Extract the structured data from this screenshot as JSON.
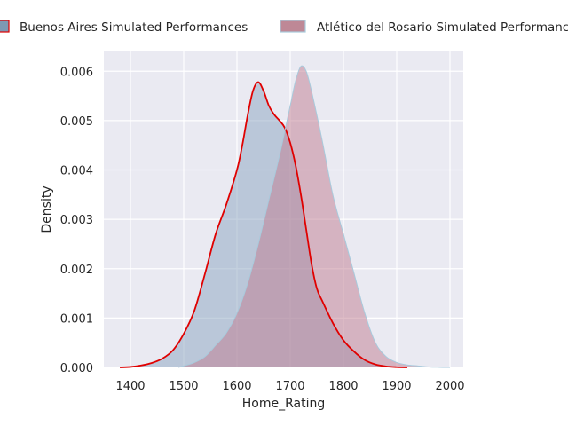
{
  "chart_data": {
    "type": "area",
    "title": "",
    "xlabel": "Home_Rating",
    "ylabel": "Density",
    "xlim": [
      1350,
      2025
    ],
    "ylim": [
      0,
      0.0064
    ],
    "xticks": [
      1400,
      1500,
      1600,
      1700,
      1800,
      1900,
      2000
    ],
    "yticks": [
      0.0,
      0.001,
      0.002,
      0.003,
      0.004,
      0.005,
      0.006
    ],
    "ytick_labels": [
      "0.000",
      "0.001",
      "0.002",
      "0.003",
      "0.004",
      "0.005",
      "0.006"
    ],
    "grid": true,
    "legend_position": "top",
    "series": [
      {
        "name": "Buenos Aires Simulated Performances",
        "fill": "#8aa4c0",
        "line": "#e00000",
        "x": [
          1380,
          1400,
          1420,
          1440,
          1460,
          1480,
          1500,
          1520,
          1540,
          1560,
          1580,
          1600,
          1610,
          1620,
          1630,
          1640,
          1650,
          1660,
          1670,
          1680,
          1690,
          1700,
          1710,
          1720,
          1730,
          1740,
          1750,
          1760,
          1780,
          1800,
          1820,
          1840,
          1860,
          1880,
          1900,
          1920
        ],
        "y": [
          0.0,
          1e-05,
          4e-05,
          9e-05,
          0.00018,
          0.00035,
          0.00068,
          0.00115,
          0.0019,
          0.0027,
          0.0033,
          0.004,
          0.0045,
          0.0051,
          0.0056,
          0.00578,
          0.0056,
          0.0053,
          0.00512,
          0.005,
          0.00485,
          0.00455,
          0.0041,
          0.0035,
          0.0028,
          0.0021,
          0.0016,
          0.00135,
          0.0009,
          0.00055,
          0.00032,
          0.00015,
          6e-05,
          2e-05,
          5e-06,
          0.0
        ]
      },
      {
        "name": "Atlético del Rosario Simulated Performances",
        "fill": "#c07c8f",
        "line": "#a8cadc",
        "x": [
          1490,
          1500,
          1520,
          1540,
          1560,
          1580,
          1600,
          1620,
          1640,
          1660,
          1680,
          1700,
          1710,
          1720,
          1730,
          1740,
          1760,
          1780,
          1800,
          1820,
          1840,
          1860,
          1880,
          1900,
          1920,
          1940,
          1960,
          1980,
          2000
        ],
        "y": [
          0.0,
          3e-05,
          0.0001,
          0.00022,
          0.00045,
          0.0007,
          0.0011,
          0.0017,
          0.0025,
          0.0034,
          0.0043,
          0.0053,
          0.0058,
          0.0061,
          0.006,
          0.0056,
          0.0046,
          0.0035,
          0.0027,
          0.0019,
          0.0011,
          0.0005,
          0.00022,
          0.0001,
          5e-05,
          3e-05,
          1e-05,
          3e-06,
          0.0
        ]
      }
    ]
  }
}
